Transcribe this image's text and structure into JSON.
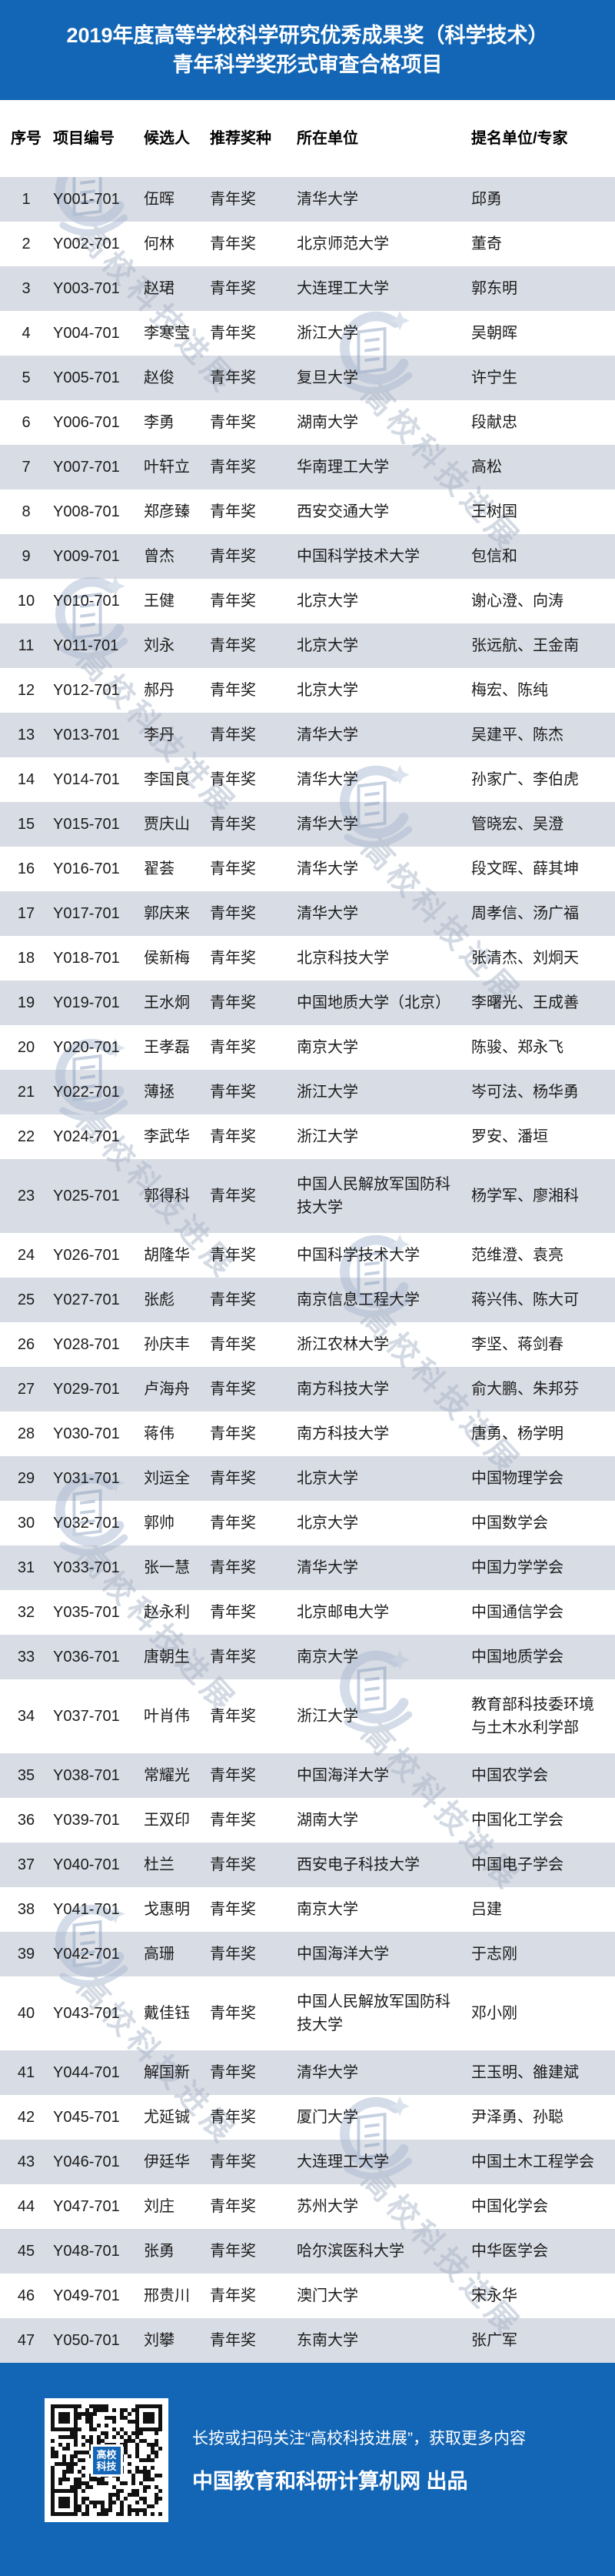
{
  "title": {
    "line1": "2019年度高等学校科学研究优秀成果奖（科学技术）",
    "line2": "青年科学奖形式审查合格项目"
  },
  "table": {
    "columns": [
      "序号",
      "项目编号",
      "候选人",
      "推荐奖种",
      "所在单位",
      "提名单位/专家"
    ],
    "rows": [
      {
        "no": "1",
        "code": "Y001-701",
        "candidate": "伍晖",
        "award": "青年奖",
        "university": "清华大学",
        "nominator": "邱勇"
      },
      {
        "no": "2",
        "code": "Y002-701",
        "candidate": "何林",
        "award": "青年奖",
        "university": "北京师范大学",
        "nominator": "董奇"
      },
      {
        "no": "3",
        "code": "Y003-701",
        "candidate": "赵珺",
        "award": "青年奖",
        "university": "大连理工大学",
        "nominator": "郭东明"
      },
      {
        "no": "4",
        "code": "Y004-701",
        "candidate": "李寒莹",
        "award": "青年奖",
        "university": "浙江大学",
        "nominator": "吴朝晖"
      },
      {
        "no": "5",
        "code": "Y005-701",
        "candidate": "赵俊",
        "award": "青年奖",
        "university": "复旦大学",
        "nominator": "许宁生"
      },
      {
        "no": "6",
        "code": "Y006-701",
        "candidate": "李勇",
        "award": "青年奖",
        "university": "湖南大学",
        "nominator": "段献忠"
      },
      {
        "no": "7",
        "code": "Y007-701",
        "candidate": "叶轩立",
        "award": "青年奖",
        "university": "华南理工大学",
        "nominator": "高松"
      },
      {
        "no": "8",
        "code": "Y008-701",
        "candidate": "郑彦臻",
        "award": "青年奖",
        "university": "西安交通大学",
        "nominator": "王树国"
      },
      {
        "no": "9",
        "code": "Y009-701",
        "candidate": "曾杰",
        "award": "青年奖",
        "university": "中国科学技术大学",
        "nominator": "包信和"
      },
      {
        "no": "10",
        "code": "Y010-701",
        "candidate": "王健",
        "award": "青年奖",
        "university": "北京大学",
        "nominator": "谢心澄、向涛"
      },
      {
        "no": "11",
        "code": "Y011-701",
        "candidate": "刘永",
        "award": "青年奖",
        "university": "北京大学",
        "nominator": "张远航、王金南"
      },
      {
        "no": "12",
        "code": "Y012-701",
        "candidate": "郝丹",
        "award": "青年奖",
        "university": "北京大学",
        "nominator": "梅宏、陈纯"
      },
      {
        "no": "13",
        "code": "Y013-701",
        "candidate": "李丹",
        "award": "青年奖",
        "university": "清华大学",
        "nominator": "吴建平、陈杰"
      },
      {
        "no": "14",
        "code": "Y014-701",
        "candidate": "李国良",
        "award": "青年奖",
        "university": "清华大学",
        "nominator": "孙家广、李伯虎"
      },
      {
        "no": "15",
        "code": "Y015-701",
        "candidate": "贾庆山",
        "award": "青年奖",
        "university": "清华大学",
        "nominator": "管晓宏、吴澄"
      },
      {
        "no": "16",
        "code": "Y016-701",
        "candidate": "翟荟",
        "award": "青年奖",
        "university": "清华大学",
        "nominator": "段文晖、薛其坤"
      },
      {
        "no": "17",
        "code": "Y017-701",
        "candidate": "郭庆来",
        "award": "青年奖",
        "university": "清华大学",
        "nominator": "周孝信、汤广福"
      },
      {
        "no": "18",
        "code": "Y018-701",
        "candidate": "侯新梅",
        "award": "青年奖",
        "university": "北京科技大学",
        "nominator": "张清杰、刘炯天"
      },
      {
        "no": "19",
        "code": "Y019-701",
        "candidate": "王水炯",
        "award": "青年奖",
        "university": "中国地质大学（北京）",
        "nominator": "李曙光、王成善"
      },
      {
        "no": "20",
        "code": "Y020-701",
        "candidate": "王孝磊",
        "award": "青年奖",
        "university": "南京大学",
        "nominator": "陈骏、郑永飞"
      },
      {
        "no": "21",
        "code": "Y022-701",
        "candidate": "薄拯",
        "award": "青年奖",
        "university": "浙江大学",
        "nominator": "岑可法、杨华勇"
      },
      {
        "no": "22",
        "code": "Y024-701",
        "candidate": "李武华",
        "award": "青年奖",
        "university": "浙江大学",
        "nominator": "罗安、潘垣"
      },
      {
        "no": "23",
        "code": "Y025-701",
        "candidate": "郭得科",
        "award": "青年奖",
        "university": "中国人民解放军国防科技大学",
        "nominator": "杨学军、廖湘科"
      },
      {
        "no": "24",
        "code": "Y026-701",
        "candidate": "胡隆华",
        "award": "青年奖",
        "university": "中国科学技术大学",
        "nominator": "范维澄、袁亮"
      },
      {
        "no": "25",
        "code": "Y027-701",
        "candidate": "张彪",
        "award": "青年奖",
        "university": "南京信息工程大学",
        "nominator": "蒋兴伟、陈大可"
      },
      {
        "no": "26",
        "code": "Y028-701",
        "candidate": "孙庆丰",
        "award": "青年奖",
        "university": "浙江农林大学",
        "nominator": "李坚、蒋剑春"
      },
      {
        "no": "27",
        "code": "Y029-701",
        "candidate": "卢海舟",
        "award": "青年奖",
        "university": "南方科技大学",
        "nominator": "俞大鹏、朱邦芬"
      },
      {
        "no": "28",
        "code": "Y030-701",
        "candidate": "蒋伟",
        "award": "青年奖",
        "university": "南方科技大学",
        "nominator": "唐勇、杨学明"
      },
      {
        "no": "29",
        "code": "Y031-701",
        "candidate": "刘运全",
        "award": "青年奖",
        "university": "北京大学",
        "nominator": "中国物理学会"
      },
      {
        "no": "30",
        "code": "Y032-701",
        "candidate": "郭帅",
        "award": "青年奖",
        "university": "北京大学",
        "nominator": "中国数学会"
      },
      {
        "no": "31",
        "code": "Y033-701",
        "candidate": "张一慧",
        "award": "青年奖",
        "university": "清华大学",
        "nominator": "中国力学学会"
      },
      {
        "no": "32",
        "code": "Y035-701",
        "candidate": "赵永利",
        "award": "青年奖",
        "university": "北京邮电大学",
        "nominator": "中国通信学会"
      },
      {
        "no": "33",
        "code": "Y036-701",
        "candidate": "唐朝生",
        "award": "青年奖",
        "university": "南京大学",
        "nominator": "中国地质学会"
      },
      {
        "no": "34",
        "code": "Y037-701",
        "candidate": "叶肖伟",
        "award": "青年奖",
        "university": "浙江大学",
        "nominator": "教育部科技委环境与土木水利学部"
      },
      {
        "no": "35",
        "code": "Y038-701",
        "candidate": "常耀光",
        "award": "青年奖",
        "university": "中国海洋大学",
        "nominator": "中国农学会"
      },
      {
        "no": "36",
        "code": "Y039-701",
        "candidate": "王双印",
        "award": "青年奖",
        "university": "湖南大学",
        "nominator": "中国化工学会"
      },
      {
        "no": "37",
        "code": "Y040-701",
        "candidate": "杜兰",
        "award": "青年奖",
        "university": "西安电子科技大学",
        "nominator": "中国电子学会"
      },
      {
        "no": "38",
        "code": "Y041-701",
        "candidate": "戈惠明",
        "award": "青年奖",
        "university": "南京大学",
        "nominator": "吕建"
      },
      {
        "no": "39",
        "code": "Y042-701",
        "candidate": "高珊",
        "award": "青年奖",
        "university": "中国海洋大学",
        "nominator": "于志刚"
      },
      {
        "no": "40",
        "code": "Y043-701",
        "candidate": "戴佳钰",
        "award": "青年奖",
        "university": "中国人民解放军国防科技大学",
        "nominator": "邓小刚"
      },
      {
        "no": "41",
        "code": "Y044-701",
        "candidate": "解国新",
        "award": "青年奖",
        "university": "清华大学",
        "nominator": "王玉明、雒建斌"
      },
      {
        "no": "42",
        "code": "Y045-701",
        "candidate": "尤延铖",
        "award": "青年奖",
        "university": "厦门大学",
        "nominator": "尹泽勇、孙聪"
      },
      {
        "no": "43",
        "code": "Y046-701",
        "candidate": "伊廷华",
        "award": "青年奖",
        "university": "大连理工大学",
        "nominator": "中国土木工程学会"
      },
      {
        "no": "44",
        "code": "Y047-701",
        "candidate": "刘庄",
        "award": "青年奖",
        "university": "苏州大学",
        "nominator": "中国化学会"
      },
      {
        "no": "45",
        "code": "Y048-701",
        "candidate": "张勇",
        "award": "青年奖",
        "university": "哈尔滨医科大学",
        "nominator": "中华医学会"
      },
      {
        "no": "46",
        "code": "Y049-701",
        "candidate": "邢贵川",
        "award": "青年奖",
        "university": "澳门大学",
        "nominator": "宋永华"
      },
      {
        "no": "47",
        "code": "Y050-701",
        "candidate": "刘攀",
        "award": "青年奖",
        "university": "东南大学",
        "nominator": "张广军"
      }
    ]
  },
  "watermark": {
    "text": "高校科技进展",
    "logo": "building-swoosh-star-logo"
  },
  "footer": {
    "line1": "长按或扫码关注“高校科技进展”，获取更多内容",
    "line2": "中国教育和科研计算机网 出品",
    "qr_label": "高校科技"
  },
  "colors": {
    "primary_blue": "#1366b5",
    "row_alt_gray": "#d8dce4",
    "row_white": "#ffffff"
  }
}
